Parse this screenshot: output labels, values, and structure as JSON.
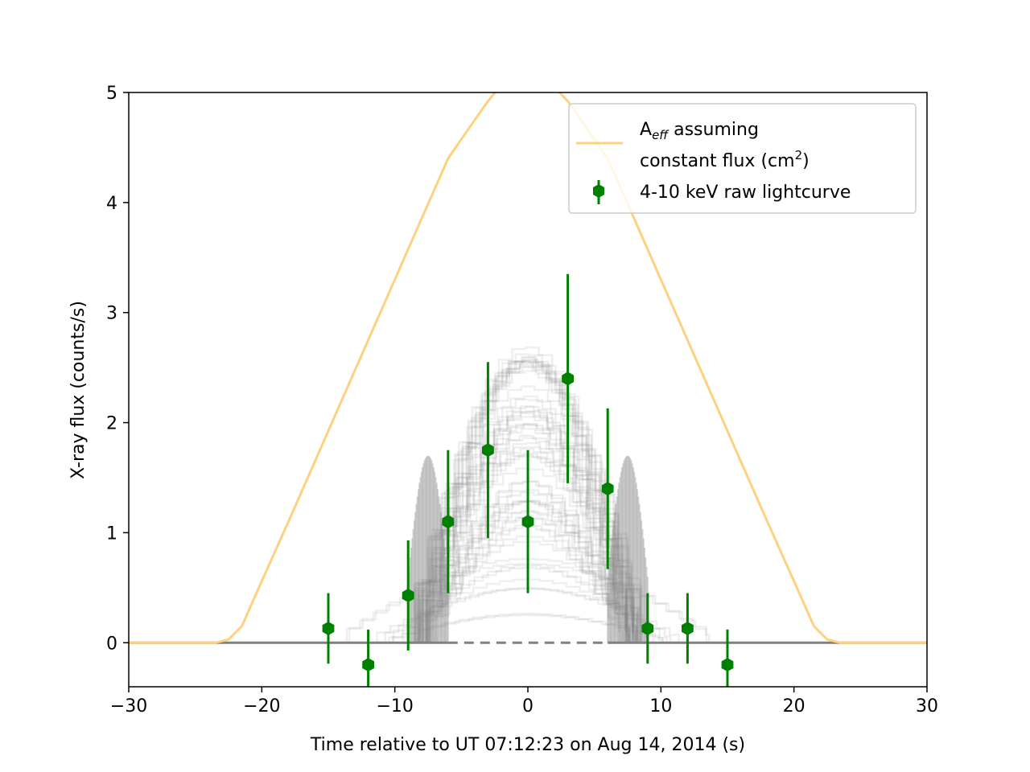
{
  "chart_data": {
    "type": "line",
    "xlabel": "Time relative to UT 07:12:23 on Aug 14, 2014 (s)",
    "ylabel": "X-ray flux (counts/s)",
    "xlim": [
      -30,
      30
    ],
    "ylim": [
      -0.4,
      5
    ],
    "xticks": [
      -30,
      -20,
      -10,
      0,
      10,
      20,
      30
    ],
    "xtick_labels": [
      "−30",
      "−20",
      "−10",
      "0",
      "10",
      "20",
      "30"
    ],
    "yticks": [
      0,
      1,
      2,
      3,
      4,
      5
    ],
    "ytick_labels": [
      "0",
      "1",
      "2",
      "3",
      "4",
      "5"
    ],
    "grid": false,
    "legend": {
      "location": "top-right",
      "aeff_main": "A",
      "aeff_sub": "eff",
      "aeff_rest": " assuming",
      "aeff_line2_pre": "constant flux (cm",
      "aeff_sup": "2",
      "aeff_line2_post": ")",
      "lightcurve": "4-10 keV raw lightcurve"
    },
    "colors": {
      "aeff": "#fdd17f",
      "lightcurve": "#008000",
      "models": "#808080"
    },
    "aeff_curve": {
      "name": "Aeff assuming constant flux (cm2)",
      "x": [
        -30,
        -23.5,
        -22.5,
        -21.5,
        -20,
        -18,
        -16,
        -14,
        -12,
        -10,
        -8,
        -6,
        -4,
        -3,
        -2,
        -1.2,
        -0.5,
        0,
        1,
        2,
        3,
        4,
        6,
        8,
        10,
        12,
        14,
        16,
        18,
        20,
        21.5,
        22.5,
        23.5,
        30
      ],
      "y": [
        0,
        0,
        0.03,
        0.15,
        0.56,
        1.1,
        1.65,
        2.2,
        2.75,
        3.3,
        3.85,
        4.4,
        4.75,
        4.92,
        5.07,
        5.14,
        5.165,
        5.165,
        5.14,
        5.05,
        4.92,
        4.75,
        4.4,
        3.85,
        3.3,
        2.75,
        2.2,
        1.65,
        1.1,
        0.56,
        0.15,
        0.03,
        0,
        0
      ]
    },
    "lightcurve": {
      "name": "4-10 keV raw lightcurve",
      "x": [
        -15,
        -12,
        -9,
        -6,
        -3,
        0,
        3,
        6,
        9,
        12,
        15
      ],
      "y": [
        0.13,
        -0.2,
        0.43,
        1.1,
        1.75,
        1.1,
        2.4,
        1.4,
        0.13,
        0.13,
        -0.2
      ],
      "yerr": [
        0.32,
        0.32,
        0.5,
        0.65,
        0.8,
        0.65,
        0.95,
        0.73,
        0.32,
        0.32,
        0.32
      ]
    },
    "model_band": {
      "description_visible": false,
      "peak_min": 0.25,
      "peak_max": 2.75,
      "count": 60
    }
  }
}
